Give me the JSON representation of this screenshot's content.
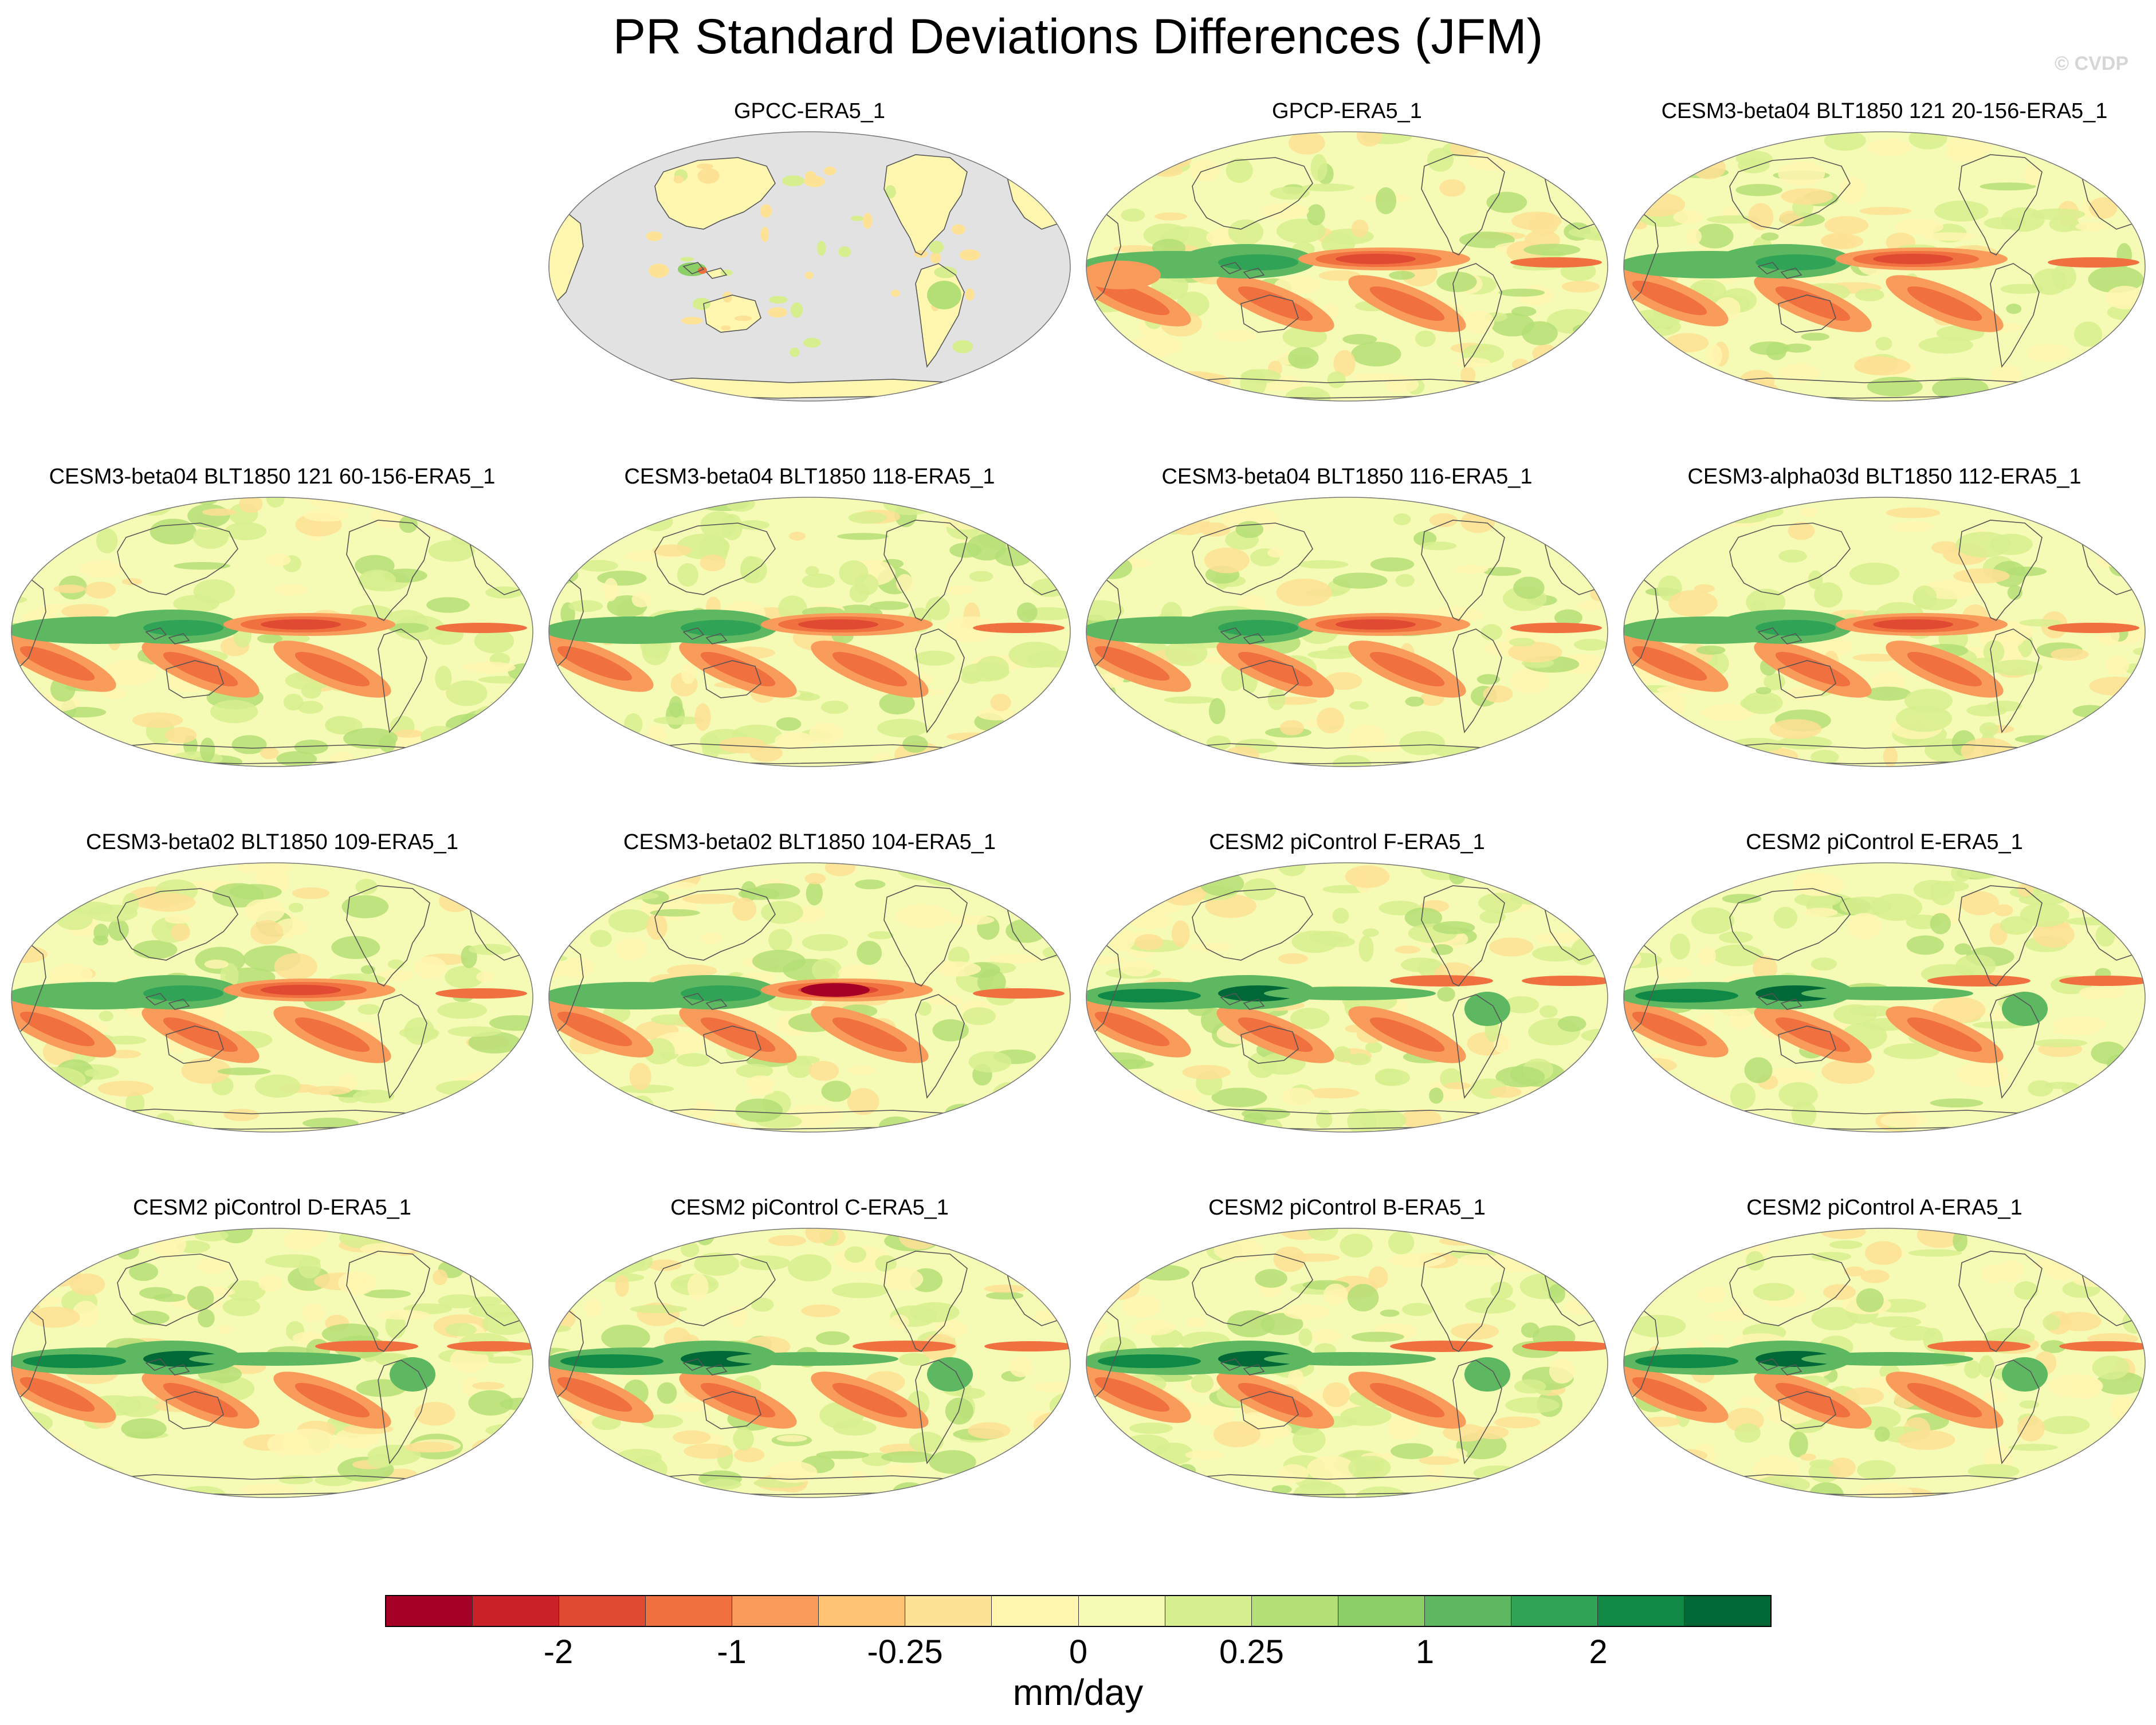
{
  "title": "PR Standard Deviations Differences (JFM)",
  "credit": "© CVDP",
  "panels": [
    {
      "title": "GPCC-ERA5_1",
      "type": "obs"
    },
    {
      "title": "GPCP-ERA5_1",
      "type": "obs2"
    },
    {
      "title": "CESM3-beta04 BLT1850 121 20-156-ERA5_1",
      "type": "model"
    },
    {
      "title": "CESM3-beta04 BLT1850 121 60-156-ERA5_1",
      "type": "model"
    },
    {
      "title": "CESM3-beta04 BLT1850 118-ERA5_1",
      "type": "model"
    },
    {
      "title": "CESM3-beta04 BLT1850 116-ERA5_1",
      "type": "model"
    },
    {
      "title": "CESM3-alpha03d BLT1850 112-ERA5_1",
      "type": "model"
    },
    {
      "title": "CESM3-beta02 BLT1850 109-ERA5_1",
      "type": "model"
    },
    {
      "title": "CESM3-beta02 BLT1850 104-ERA5_1",
      "type": "model"
    },
    {
      "title": "CESM2 piControl F-ERA5_1",
      "type": "cesm2"
    },
    {
      "title": "CESM2 piControl E-ERA5_1",
      "type": "cesm2"
    },
    {
      "title": "CESM2 piControl D-ERA5_1",
      "type": "cesm2"
    },
    {
      "title": "CESM2 piControl C-ERA5_1",
      "type": "cesm2"
    },
    {
      "title": "CESM2 piControl B-ERA5_1",
      "type": "cesm2"
    },
    {
      "title": "CESM2 piControl A-ERA5_1",
      "type": "cesm2"
    }
  ],
  "colorbar": {
    "colors": [
      "#a50026",
      "#c92127",
      "#e04a33",
      "#f1703f",
      "#f99b5a",
      "#fdc272",
      "#fde194",
      "#fff6b0",
      "#f5fab4",
      "#d7ee8e",
      "#b4de76",
      "#8cce68",
      "#5eb861",
      "#30a356",
      "#108946",
      "#006837"
    ],
    "tick_labels": [
      "-2",
      "-1",
      "-0.25",
      "0",
      "0.25",
      "1",
      "2"
    ],
    "units": "mm/day"
  },
  "colors": {
    "missing": "#e2e2e2",
    "coast": "#555555",
    "border": "#777777"
  }
}
